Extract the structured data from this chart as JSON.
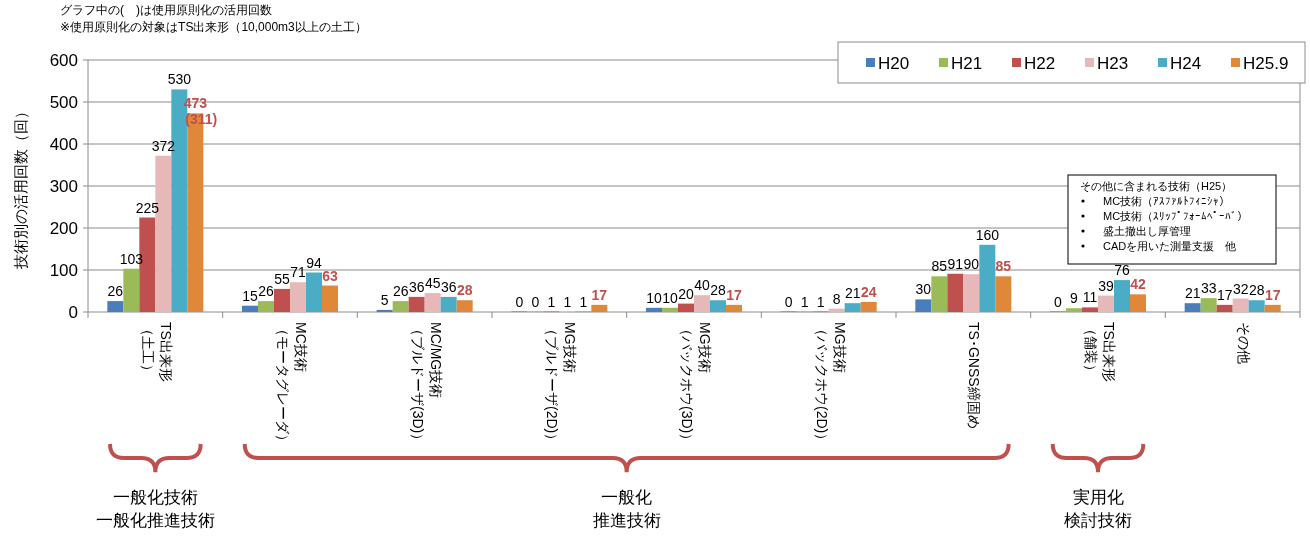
{
  "chart_data": {
    "type": "bar",
    "ylabel": "技術別の活用回数（回）",
    "categories": [
      "TS出来形（土工）",
      "MC技術（モータグレーダ）",
      "MC/MG技術（ブルドーザ(3D)）",
      "MG技術（ブルドーザ(2D)）",
      "MG技術（バックホウ(3D)）",
      "MG技術（バックホウ(2D)）",
      "TS･GNSS締固め",
      "TS出来形（舗装）",
      "その他"
    ],
    "series": [
      {
        "name": "H20",
        "color": "#4a7ebb",
        "values": [
          26,
          15,
          5,
          0,
          10,
          0,
          30,
          0,
          21
        ]
      },
      {
        "name": "H21",
        "color": "#9bbb59",
        "values": [
          103,
          26,
          26,
          0,
          10,
          1,
          85,
          9,
          33
        ]
      },
      {
        "name": "H22",
        "color": "#c0504d",
        "values": [
          225,
          55,
          36,
          1,
          20,
          1,
          91,
          11,
          17
        ]
      },
      {
        "name": "H23",
        "color": "#e6b9b8",
        "values": [
          372,
          71,
          45,
          1,
          40,
          8,
          90,
          39,
          32
        ]
      },
      {
        "name": "H24",
        "color": "#4bacc6",
        "values": [
          530,
          94,
          36,
          1,
          28,
          21,
          160,
          76,
          28
        ]
      },
      {
        "name": "H25.9",
        "color": "#e0883a",
        "values": [
          473,
          63,
          28,
          17,
          17,
          24,
          85,
          42,
          17
        ],
        "value_labels": [
          "473",
          "63",
          "28",
          "17",
          "17",
          "24",
          "85",
          "42",
          "17"
        ]
      }
    ],
    "ylim": [
      0,
      600
    ],
    "yticks": [
      0,
      100,
      200,
      300,
      400,
      500,
      600
    ],
    "grid": "y",
    "legend": "top right",
    "data_labels": true,
    "annotations": [
      "グラフ中の(　)は使用原則化の活用回数",
      "※使用原則化の対象はTS出来形（10,000m3以上の土工）",
      "(311)",
      "一般化技術一般化推進技術",
      "一般化推進技術",
      "実用化検討技術",
      "その他に含まれる技術（H25）",
      "MC技術（ｱｽﾌｧﾙﾄﾌｨﾆｼｬ）",
      "MC技術（ｽﾘｯﾌﾟﾌｫｰﾑﾍﾟｰﾊﾞ）",
      "盛土撤出し厚管理",
      "CADを用いた測量支援　他"
    ]
  }
}
